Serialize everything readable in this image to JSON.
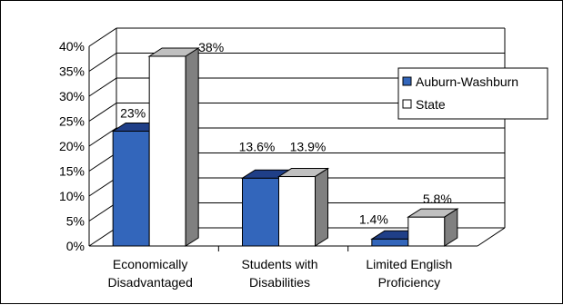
{
  "chart_data": {
    "type": "bar",
    "categories": [
      [
        "Economically",
        "Disadvantaged"
      ],
      [
        "Students with",
        "Disabilities"
      ],
      [
        "Limited English",
        "Proficiency"
      ]
    ],
    "series": [
      {
        "name": "Auburn-Washburn",
        "values": [
          23,
          13.6,
          1.4
        ],
        "labels": [
          "23%",
          "13.6%",
          "1.4%"
        ],
        "color": "#3366bb",
        "top_color": "#1f3f88"
      },
      {
        "name": "State",
        "values": [
          38,
          13.9,
          5.8
        ],
        "labels": [
          "38%",
          "13.9%",
          "5.8%"
        ],
        "color": "#ffffff",
        "top_color": "#c0c0c0",
        "side_color": "#808080"
      }
    ],
    "y_ticks": [
      "0%",
      "5%",
      "10%",
      "15%",
      "20%",
      "25%",
      "30%",
      "35%",
      "40%"
    ],
    "ylim": [
      0,
      40
    ],
    "grid": true,
    "legend_position": "right",
    "three_d": true
  }
}
